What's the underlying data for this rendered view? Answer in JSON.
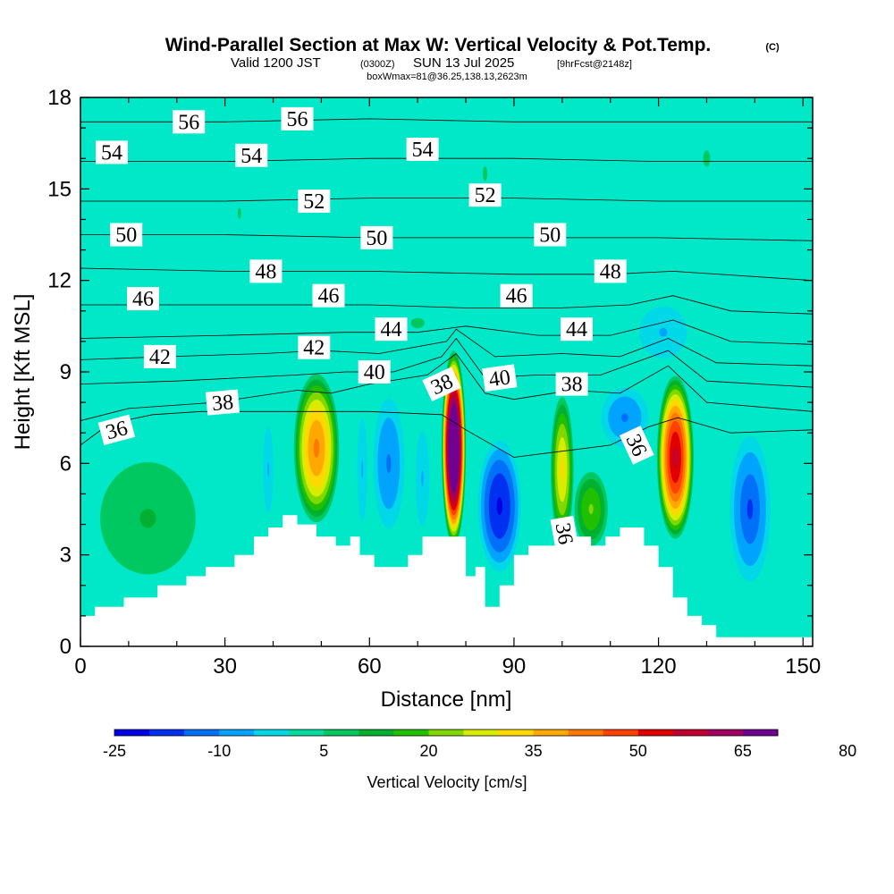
{
  "header": {
    "title": "Wind-Parallel Section at Max W: Vertical Velocity & Pot.Temp.",
    "copyright": "(C)",
    "valid_prefix": "Valid 1200 JST",
    "utc_time": "(0300Z)",
    "valid_date": "SUN 13 Jul 2025",
    "forecast": "[9hrFcst@2148z]",
    "box_info": "boxWmax=81@36.25,138.13,2623m"
  },
  "colors": {
    "background_fill": "#00e8c8",
    "terrain": "#ffffff"
  },
  "colorbar": {
    "title": "Vertical Velocity [cm/s]",
    "tick_labels": [
      "-25",
      "-10",
      "5",
      "20",
      "35",
      "50",
      "65",
      "80"
    ],
    "colors": [
      "#0000e6",
      "#0030f0",
      "#0070f8",
      "#00a4ff",
      "#00d8e8",
      "#00dca0",
      "#00c860",
      "#00b030",
      "#20c000",
      "#80d800",
      "#d8ec00",
      "#ffd800",
      "#ffa800",
      "#ff7800",
      "#ff4000",
      "#e00000",
      "#c00030",
      "#a00060",
      "#700090"
    ]
  },
  "chart_data": {
    "type": "heatmap",
    "title": "Wind-Parallel Section at Max W: Vertical Velocity & Pot.Temp.",
    "xlabel": "Distance [nm]",
    "ylabel": "Height [Kft MSL]",
    "xlim": [
      0,
      152
    ],
    "ylim": [
      0,
      18
    ],
    "x_ticks": [
      "0",
      "30",
      "60",
      "90",
      "120",
      "150"
    ],
    "y_ticks": [
      "0",
      "3",
      "6",
      "9",
      "12",
      "15",
      "18"
    ],
    "colorbar_title": "Vertical Velocity [cm/s]",
    "colorbar_ticks": [
      -25,
      -10,
      5,
      20,
      35,
      50,
      65,
      80
    ],
    "terrain_profile": {
      "distance_nm": [
        0,
        3,
        3,
        9,
        9,
        16,
        16,
        22,
        22,
        26,
        26,
        32,
        32,
        36,
        36,
        39,
        39,
        42,
        42,
        45,
        45,
        49,
        49,
        53,
        53,
        56,
        56,
        58,
        58,
        61,
        61,
        68,
        68,
        71,
        71,
        74,
        74,
        80,
        80,
        82,
        82,
        84,
        84,
        87,
        87,
        90,
        90,
        93,
        93,
        103,
        103,
        106,
        106,
        109,
        109,
        112,
        112,
        117,
        117,
        120,
        120,
        123,
        123,
        126,
        126,
        129,
        129,
        132,
        132,
        138,
        138,
        147,
        147,
        152
      ],
      "height_kft": [
        1.0,
        1.0,
        1.3,
        1.3,
        1.6,
        1.6,
        2.0,
        2.0,
        2.3,
        2.3,
        2.6,
        2.6,
        3.0,
        3.0,
        3.6,
        3.6,
        3.9,
        3.9,
        4.3,
        4.3,
        4.0,
        4.0,
        3.6,
        3.6,
        3.3,
        3.3,
        3.6,
        3.6,
        3.0,
        3.0,
        2.6,
        2.6,
        3.0,
        3.0,
        3.6,
        3.6,
        3.6,
        3.6,
        2.3,
        2.3,
        2.6,
        2.6,
        1.3,
        1.3,
        2.0,
        2.0,
        3.0,
        3.0,
        3.3,
        3.3,
        3.6,
        3.6,
        3.3,
        3.3,
        3.6,
        3.6,
        3.9,
        3.9,
        3.3,
        3.3,
        2.6,
        2.6,
        1.6,
        1.6,
        1.0,
        1.0,
        0.7,
        0.7,
        0.3,
        0.3,
        0.3,
        0.3,
        0.3,
        0.3
      ]
    },
    "vertical_velocity_cells": [
      {
        "name": "updraft-45nm",
        "x_nm": 49,
        "z_kft": 6.5,
        "half_width_nm": 5,
        "half_height_kft": 2.6,
        "w_max_cms": 40
      },
      {
        "name": "updraft-77nm",
        "x_nm": 77.5,
        "z_kft": 6.5,
        "half_width_nm": 2.6,
        "half_height_kft": 3.3,
        "w_max_cms": 81
      },
      {
        "name": "updraft-100nm",
        "x_nm": 100,
        "z_kft": 5.8,
        "half_width_nm": 2.6,
        "half_height_kft": 2.6,
        "w_max_cms": 30
      },
      {
        "name": "updraft-124nm",
        "x_nm": 123.5,
        "z_kft": 6.2,
        "half_width_nm": 4,
        "half_height_kft": 2.8,
        "w_max_cms": 55
      },
      {
        "name": "updraft-105nm-low",
        "x_nm": 106,
        "z_kft": 4.5,
        "half_width_nm": 4,
        "half_height_kft": 1.4,
        "w_max_cms": 20
      },
      {
        "name": "downdraft-88nm",
        "x_nm": 87,
        "z_kft": 4.6,
        "half_width_nm": 5,
        "half_height_kft": 2.4,
        "w_max_cms": -25
      },
      {
        "name": "downdraft-64nm",
        "x_nm": 64,
        "z_kft": 6.0,
        "half_width_nm": 4,
        "half_height_kft": 2.6,
        "w_max_cms": -15
      },
      {
        "name": "downdraft-139nm",
        "x_nm": 139,
        "z_kft": 4.5,
        "half_width_nm": 5,
        "half_height_kft": 2.8,
        "w_max_cms": -18
      },
      {
        "name": "downdraft-113nm",
        "x_nm": 113,
        "z_kft": 7.5,
        "half_width_nm": 6,
        "half_height_kft": 1.2,
        "w_max_cms": -15
      },
      {
        "name": "downdraft-58nm",
        "x_nm": 58.5,
        "z_kft": 5.8,
        "half_width_nm": 1.5,
        "half_height_kft": 2.4,
        "w_max_cms": -10
      },
      {
        "name": "downdraft-39nm",
        "x_nm": 39,
        "z_kft": 5.8,
        "half_width_nm": 1.5,
        "half_height_kft": 2.0,
        "w_max_cms": -10
      },
      {
        "name": "downdraft-72nm",
        "x_nm": 71,
        "z_kft": 5.5,
        "half_width_nm": 2,
        "half_height_kft": 2.2,
        "w_max_cms": -10
      },
      {
        "name": "weak-up-10nm",
        "x_nm": 14,
        "z_kft": 4.2,
        "half_width_nm": 14,
        "half_height_kft": 2.6,
        "w_max_cms": 10
      },
      {
        "name": "weak-up-35nm",
        "x_nm": 33,
        "z_kft": 14.2,
        "half_width_nm": 3,
        "half_height_kft": 1.5,
        "w_max_cms": 5
      },
      {
        "name": "weak-up-85nm-upper",
        "x_nm": 84,
        "z_kft": 15.5,
        "half_width_nm": 4,
        "half_height_kft": 2.0,
        "w_max_cms": 5
      },
      {
        "name": "weak-up-130nm-upper",
        "x_nm": 130,
        "z_kft": 16.0,
        "half_width_nm": 6,
        "half_height_kft": 2.2,
        "w_max_cms": 5
      },
      {
        "name": "weak-up-70nm-mid",
        "x_nm": 70,
        "z_kft": 10.6,
        "half_width_nm": 12,
        "half_height_kft": 1.4,
        "w_max_cms": 5
      },
      {
        "name": "weak-down-120nm-upper",
        "x_nm": 121,
        "z_kft": 10.3,
        "half_width_nm": 7,
        "half_height_kft": 1.2,
        "w_max_cms": -10
      }
    ],
    "theta_contours": [
      {
        "label": "36",
        "points": [
          [
            0,
            6.6
          ],
          [
            6,
            7.3
          ],
          [
            15,
            7.6
          ],
          [
            25,
            7.7
          ],
          [
            40,
            7.7
          ],
          [
            60,
            7.7
          ],
          [
            75,
            7.6
          ],
          [
            80,
            7.1
          ],
          [
            90,
            6.2
          ],
          [
            100,
            6.4
          ],
          [
            110,
            6.6
          ],
          [
            118,
            7.2
          ],
          [
            124,
            7.5
          ],
          [
            135,
            7.0
          ],
          [
            152,
            7.1
          ]
        ]
      },
      {
        "label": "38",
        "points": [
          [
            0,
            7.4
          ],
          [
            10,
            7.8
          ],
          [
            28,
            8.0
          ],
          [
            45,
            8.4
          ],
          [
            52,
            8.3
          ],
          [
            60,
            8.6
          ],
          [
            72,
            8.9
          ],
          [
            78,
            9.6
          ],
          [
            84,
            8.3
          ],
          [
            90,
            8.1
          ],
          [
            102,
            8.4
          ],
          [
            112,
            8.3
          ],
          [
            122,
            9.2
          ],
          [
            130,
            8.0
          ],
          [
            152,
            7.7
          ]
        ]
      },
      {
        "label": "40",
        "points": [
          [
            0,
            8.6
          ],
          [
            20,
            8.7
          ],
          [
            45,
            8.9
          ],
          [
            55,
            9.0
          ],
          [
            65,
            9.0
          ],
          [
            75,
            9.5
          ],
          [
            78,
            10.1
          ],
          [
            84,
            8.8
          ],
          [
            95,
            8.9
          ],
          [
            108,
            8.9
          ],
          [
            122,
            9.7
          ],
          [
            130,
            8.7
          ],
          [
            152,
            8.5
          ]
        ]
      },
      {
        "label": "42",
        "points": [
          [
            0,
            9.4
          ],
          [
            18,
            9.5
          ],
          [
            38,
            9.6
          ],
          [
            50,
            9.7
          ],
          [
            62,
            9.6
          ],
          [
            76,
            10.0
          ],
          [
            78,
            10.4
          ],
          [
            86,
            9.5
          ],
          [
            100,
            9.6
          ],
          [
            112,
            9.5
          ],
          [
            122,
            10.1
          ],
          [
            132,
            9.3
          ],
          [
            152,
            9.2
          ]
        ]
      },
      {
        "label": "44",
        "points": [
          [
            0,
            10.1
          ],
          [
            30,
            10.2
          ],
          [
            55,
            10.3
          ],
          [
            70,
            10.3
          ],
          [
            80,
            10.5
          ],
          [
            95,
            10.2
          ],
          [
            110,
            10.2
          ],
          [
            123,
            10.7
          ],
          [
            135,
            10.0
          ],
          [
            152,
            9.9
          ]
        ]
      },
      {
        "label": "46",
        "points": [
          [
            0,
            11.2
          ],
          [
            30,
            11.2
          ],
          [
            60,
            11.2
          ],
          [
            80,
            11.1
          ],
          [
            100,
            11.1
          ],
          [
            114,
            11.2
          ],
          [
            123,
            11.5
          ],
          [
            135,
            11.0
          ],
          [
            152,
            10.9
          ]
        ]
      },
      {
        "label": "48",
        "points": [
          [
            0,
            12.4
          ],
          [
            30,
            12.3
          ],
          [
            60,
            12.3
          ],
          [
            90,
            12.2
          ],
          [
            110,
            12.2
          ],
          [
            123,
            12.3
          ],
          [
            152,
            12.0
          ]
        ]
      },
      {
        "label": "50",
        "points": [
          [
            0,
            13.5
          ],
          [
            30,
            13.5
          ],
          [
            60,
            13.4
          ],
          [
            90,
            13.4
          ],
          [
            120,
            13.4
          ],
          [
            152,
            13.3
          ]
        ]
      },
      {
        "label": "52",
        "points": [
          [
            0,
            14.6
          ],
          [
            30,
            14.6
          ],
          [
            60,
            14.7
          ],
          [
            90,
            14.7
          ],
          [
            120,
            14.6
          ],
          [
            152,
            14.6
          ]
        ]
      },
      {
        "label": "54",
        "points": [
          [
            0,
            15.9
          ],
          [
            30,
            15.9
          ],
          [
            60,
            16.0
          ],
          [
            90,
            16.0
          ],
          [
            120,
            15.9
          ],
          [
            152,
            15.9
          ]
        ]
      },
      {
        "label": "56",
        "points": [
          [
            0,
            17.2
          ],
          [
            30,
            17.2
          ],
          [
            60,
            17.3
          ],
          [
            90,
            17.2
          ],
          [
            120,
            17.2
          ],
          [
            152,
            17.2
          ]
        ]
      }
    ],
    "theta_labels": [
      {
        "text": "56",
        "x": 22.5,
        "z": 17.2,
        "angle": 0
      },
      {
        "text": "56",
        "x": 45,
        "z": 17.3,
        "angle": 0
      },
      {
        "text": "54",
        "x": 6.5,
        "z": 16.2,
        "angle": 0
      },
      {
        "text": "54",
        "x": 35.5,
        "z": 16.1,
        "angle": 0
      },
      {
        "text": "54",
        "x": 71,
        "z": 16.3,
        "angle": 0
      },
      {
        "text": "52",
        "x": 48.5,
        "z": 14.6,
        "angle": 0
      },
      {
        "text": "52",
        "x": 84,
        "z": 14.8,
        "angle": 0
      },
      {
        "text": "50",
        "x": 9.5,
        "z": 13.5,
        "angle": 0
      },
      {
        "text": "50",
        "x": 61.5,
        "z": 13.4,
        "angle": 0
      },
      {
        "text": "50",
        "x": 97.5,
        "z": 13.5,
        "angle": 0
      },
      {
        "text": "48",
        "x": 38.5,
        "z": 12.3,
        "angle": 0
      },
      {
        "text": "48",
        "x": 110,
        "z": 12.3,
        "angle": 0
      },
      {
        "text": "46",
        "x": 13,
        "z": 11.4,
        "angle": 0
      },
      {
        "text": "46",
        "x": 51.5,
        "z": 11.5,
        "angle": 0
      },
      {
        "text": "46",
        "x": 90.5,
        "z": 11.5,
        "angle": 0
      },
      {
        "text": "44",
        "x": 64.5,
        "z": 10.4,
        "angle": 0
      },
      {
        "text": "44",
        "x": 103,
        "z": 10.4,
        "angle": 0
      },
      {
        "text": "42",
        "x": 16.5,
        "z": 9.5,
        "angle": 0
      },
      {
        "text": "42",
        "x": 48.5,
        "z": 9.8,
        "angle": 0
      },
      {
        "text": "40",
        "x": 61,
        "z": 9.0,
        "angle": 0
      },
      {
        "text": "40",
        "x": 87,
        "z": 8.8,
        "angle": -8
      },
      {
        "text": "38",
        "x": 29.5,
        "z": 8.0,
        "angle": -5
      },
      {
        "text": "38",
        "x": 75,
        "z": 8.6,
        "angle": -25
      },
      {
        "text": "38",
        "x": 102,
        "z": 8.6,
        "angle": 0
      },
      {
        "text": "36",
        "x": 7.5,
        "z": 7.1,
        "angle": -15
      },
      {
        "text": "36",
        "x": 115.5,
        "z": 6.6,
        "angle": 65
      },
      {
        "text": "36",
        "x": 100.5,
        "z": 3.7,
        "angle": 80
      }
    ]
  }
}
